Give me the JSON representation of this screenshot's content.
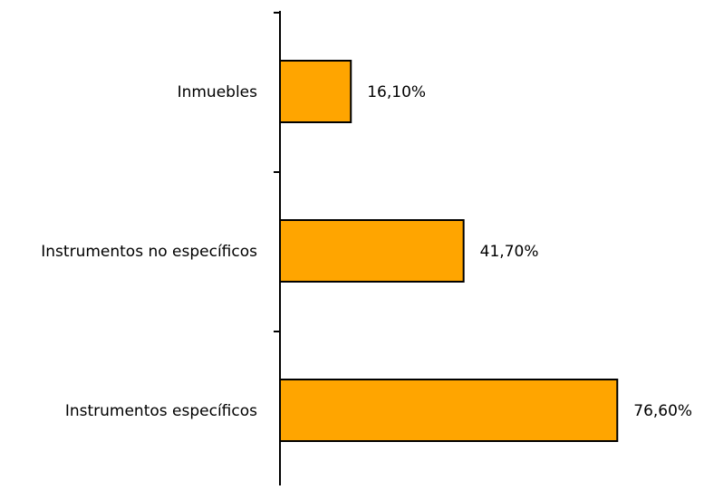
{
  "chart_data": {
    "type": "bar",
    "orientation": "horizontal",
    "categories": [
      "Inmuebles",
      "Instrumentos no específicos",
      "Instrumentos específicos"
    ],
    "values": [
      16.1,
      41.7,
      76.6
    ],
    "value_labels": [
      "16,10%",
      "41,70%",
      "76,60%"
    ],
    "unit": "%",
    "xlim": [
      0,
      100
    ],
    "title": "",
    "xlabel": "",
    "ylabel": "",
    "bar_color": "#FFA500",
    "bar_outline_color": "#000000",
    "grid": false,
    "legend": "none"
  }
}
